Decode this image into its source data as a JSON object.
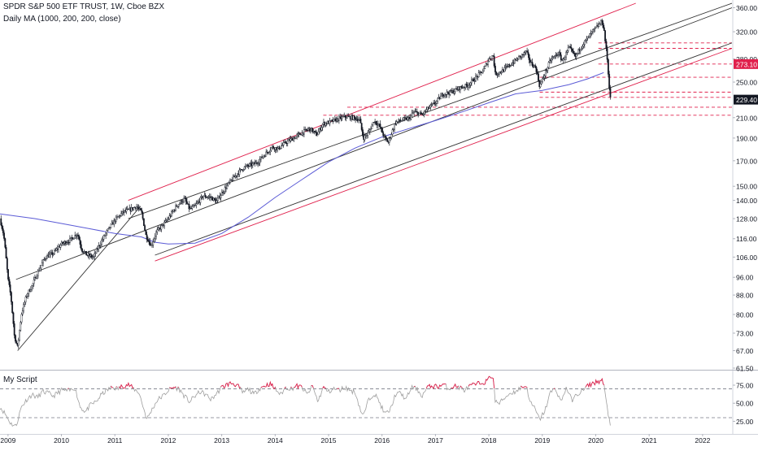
{
  "header": {
    "title": "SPDR S&P 500 ETF TRUST, 1W, Cboe BZX",
    "indicator": "Daily MA (1000, 200, 200, close)",
    "pane_title": "My Script"
  },
  "colors": {
    "candle": "#131722",
    "ma": "#5b5bd6",
    "channel_red": "#e0204c",
    "channel_black": "#333333",
    "dashed_red": "#e0204c",
    "oscillator": "#9e9e9e",
    "oscillator_overbought": "#e0204c",
    "price_badge": "#e0204c",
    "current_badge": "#131722"
  },
  "chart_data": [
    {
      "type": "candlestick",
      "title": "SPDR S&P 500 ETF TRUST, 1W, Cboe BZX",
      "y_scale": "log",
      "ylim": [
        61.5,
        368
      ],
      "xlim": [
        2008.85,
        2022.55
      ],
      "y_ticks": [
        "360.00",
        "320.00",
        "280.00",
        "250.00",
        "210.00",
        "190.00",
        "170.00",
        "150.00",
        "140.00",
        "128.00",
        "116.00",
        "106.00",
        "96.00",
        "88.00",
        "80.00",
        "73.00",
        "67.00",
        "61.50"
      ],
      "y_tick_values": [
        360,
        320,
        280,
        250,
        210,
        190,
        170,
        150,
        140,
        128,
        116,
        106,
        96,
        88,
        80,
        73,
        67,
        61.5
      ],
      "x_ticks": [
        "2009",
        "2010",
        "2011",
        "2012",
        "2013",
        "2014",
        "2015",
        "2016",
        "2017",
        "2018",
        "2019",
        "2020",
        "2021",
        "2022"
      ],
      "x_tick_values": [
        2009,
        2010,
        2011,
        2012,
        2013,
        2014,
        2015,
        2016,
        2017,
        2018,
        2019,
        2020,
        2021,
        2022
      ],
      "price_labels": [
        {
          "text": "273.10",
          "value": 273.1,
          "style": "red"
        },
        {
          "text": "229.40",
          "value": 229.4,
          "style": "dark"
        }
      ],
      "close_path": [
        [
          2008.85,
          128
        ],
        [
          2008.92,
          118
        ],
        [
          2009.0,
          95
        ],
        [
          2009.05,
          88
        ],
        [
          2009.12,
          72
        ],
        [
          2009.18,
          68
        ],
        [
          2009.25,
          80
        ],
        [
          2009.35,
          88
        ],
        [
          2009.45,
          92
        ],
        [
          2009.55,
          98
        ],
        [
          2009.7,
          106
        ],
        [
          2009.85,
          108
        ],
        [
          2010.0,
          113
        ],
        [
          2010.15,
          115
        ],
        [
          2010.3,
          119
        ],
        [
          2010.38,
          110
        ],
        [
          2010.48,
          107
        ],
        [
          2010.6,
          106
        ],
        [
          2010.72,
          113
        ],
        [
          2010.85,
          120
        ],
        [
          2011.0,
          127
        ],
        [
          2011.15,
          132
        ],
        [
          2011.3,
          134
        ],
        [
          2011.4,
          136
        ],
        [
          2011.5,
          132
        ],
        [
          2011.58,
          118
        ],
        [
          2011.68,
          112
        ],
        [
          2011.78,
          120
        ],
        [
          2011.9,
          124
        ],
        [
          2012.0,
          128
        ],
        [
          2012.15,
          136
        ],
        [
          2012.3,
          141
        ],
        [
          2012.4,
          134
        ],
        [
          2012.5,
          136
        ],
        [
          2012.65,
          143
        ],
        [
          2012.8,
          142
        ],
        [
          2012.9,
          139
        ],
        [
          2013.0,
          145
        ],
        [
          2013.15,
          153
        ],
        [
          2013.3,
          160
        ],
        [
          2013.4,
          164
        ],
        [
          2013.5,
          166
        ],
        [
          2013.65,
          168
        ],
        [
          2013.8,
          175
        ],
        [
          2013.95,
          182
        ],
        [
          2014.05,
          180
        ],
        [
          2014.2,
          186
        ],
        [
          2014.35,
          190
        ],
        [
          2014.5,
          195
        ],
        [
          2014.65,
          199
        ],
        [
          2014.78,
          193
        ],
        [
          2014.9,
          204
        ],
        [
          2015.0,
          205
        ],
        [
          2015.15,
          208
        ],
        [
          2015.3,
          211
        ],
        [
          2015.45,
          210
        ],
        [
          2015.58,
          208
        ],
        [
          2015.65,
          190
        ],
        [
          2015.75,
          195
        ],
        [
          2015.85,
          207
        ],
        [
          2015.95,
          202
        ],
        [
          2016.05,
          190
        ],
        [
          2016.12,
          186
        ],
        [
          2016.25,
          205
        ],
        [
          2016.4,
          208
        ],
        [
          2016.5,
          209
        ],
        [
          2016.6,
          216
        ],
        [
          2016.75,
          213
        ],
        [
          2016.85,
          219
        ],
        [
          2017.0,
          226
        ],
        [
          2017.15,
          236
        ],
        [
          2017.3,
          238
        ],
        [
          2017.45,
          243
        ],
        [
          2017.6,
          246
        ],
        [
          2017.75,
          255
        ],
        [
          2017.9,
          265
        ],
        [
          2018.0,
          280
        ],
        [
          2018.08,
          285
        ],
        [
          2018.12,
          260
        ],
        [
          2018.25,
          264
        ],
        [
          2018.4,
          272
        ],
        [
          2018.55,
          281
        ],
        [
          2018.7,
          290
        ],
        [
          2018.78,
          275
        ],
        [
          2018.88,
          268
        ],
        [
          2018.95,
          245
        ],
        [
          2019.0,
          252
        ],
        [
          2019.15,
          278
        ],
        [
          2019.3,
          288
        ],
        [
          2019.38,
          277
        ],
        [
          2019.5,
          296
        ],
        [
          2019.62,
          283
        ],
        [
          2019.72,
          297
        ],
        [
          2019.85,
          310
        ],
        [
          2019.95,
          321
        ],
        [
          2020.05,
          330
        ],
        [
          2020.12,
          337
        ],
        [
          2020.16,
          320
        ],
        [
          2020.19,
          296
        ],
        [
          2020.21,
          285
        ],
        [
          2020.24,
          255
        ],
        [
          2020.26,
          240
        ],
        [
          2020.28,
          229.4
        ]
      ],
      "moving_average": {
        "name": "Daily MA (1000, 200, 200, close)",
        "points": [
          [
            2008.85,
            131
          ],
          [
            2009.5,
            128
          ],
          [
            2010.0,
            125
          ],
          [
            2010.5,
            122
          ],
          [
            2011.0,
            119
          ],
          [
            2011.5,
            117
          ],
          [
            2011.75,
            114
          ],
          [
            2012.0,
            113
          ],
          [
            2012.5,
            113.5
          ],
          [
            2013.0,
            119
          ],
          [
            2013.5,
            129
          ],
          [
            2014.0,
            142
          ],
          [
            2014.5,
            155
          ],
          [
            2015.0,
            169
          ],
          [
            2015.5,
            181
          ],
          [
            2016.0,
            191
          ],
          [
            2016.5,
            199
          ],
          [
            2017.0,
            207
          ],
          [
            2017.5,
            216
          ],
          [
            2018.0,
            226
          ],
          [
            2018.5,
            236
          ],
          [
            2019.0,
            240
          ],
          [
            2019.5,
            247
          ],
          [
            2019.85,
            254
          ],
          [
            2020.0,
            258
          ],
          [
            2020.15,
            262
          ]
        ]
      },
      "trend_lines": [
        {
          "color": "red",
          "points": [
            [
              2011.25,
              140
            ],
            [
              2020.75,
              368
            ]
          ]
        },
        {
          "color": "red",
          "points": [
            [
              2011.75,
              104
            ],
            [
              2022.55,
              295
            ]
          ]
        },
        {
          "color": "black",
          "points": [
            [
              2009.15,
              95
            ],
            [
              2022.55,
              360
            ]
          ]
        },
        {
          "color": "black",
          "points": [
            [
              2011.75,
              107
            ],
            [
              2022.55,
              303
            ]
          ]
        },
        {
          "color": "black",
          "points": [
            [
              2011.25,
              128
            ],
            [
              2022.55,
              368
            ]
          ]
        },
        {
          "color": "black",
          "points": [
            [
              2009.18,
              67
            ],
            [
              2011.48,
              136
            ]
          ]
        }
      ],
      "dashed_levels": [
        {
          "value": 303,
          "from": 2020.05
        },
        {
          "value": 295,
          "from": 2020.05
        },
        {
          "value": 273.1,
          "from": 2020.05
        },
        {
          "value": 256,
          "from": 2018.95
        },
        {
          "value": 238,
          "from": 2018.95
        },
        {
          "value": 232,
          "from": 2018.95
        },
        {
          "value": 221,
          "from": 2015.35
        },
        {
          "value": 212.5,
          "from": 2014.9
        }
      ]
    },
    {
      "type": "line",
      "title": "My Script",
      "ylim": [
        12,
        93
      ],
      "y_ticks": [
        "75.00",
        "50.00",
        "25.00"
      ],
      "y_tick_values": [
        75,
        50,
        25
      ],
      "levels": [
        70,
        30
      ],
      "series": [
        {
          "points": [
            [
              2008.85,
              45
            ],
            [
              2008.95,
              35
            ],
            [
              2009.05,
              22
            ],
            [
              2009.15,
              18
            ],
            [
              2009.25,
              45
            ],
            [
              2009.35,
              55
            ],
            [
              2009.45,
              62
            ],
            [
              2009.55,
              58
            ],
            [
              2009.65,
              66
            ],
            [
              2009.75,
              64
            ],
            [
              2009.85,
              60
            ],
            [
              2010.0,
              68
            ],
            [
              2010.15,
              67
            ],
            [
              2010.25,
              72
            ],
            [
              2010.35,
              45
            ],
            [
              2010.45,
              38
            ],
            [
              2010.55,
              48
            ],
            [
              2010.65,
              52
            ],
            [
              2010.75,
              62
            ],
            [
              2010.85,
              68
            ],
            [
              2010.95,
              72
            ],
            [
              2011.05,
              70
            ],
            [
              2011.15,
              74
            ],
            [
              2011.25,
              76
            ],
            [
              2011.35,
              70
            ],
            [
              2011.45,
              65
            ],
            [
              2011.55,
              40
            ],
            [
              2011.6,
              28
            ],
            [
              2011.7,
              42
            ],
            [
              2011.8,
              55
            ],
            [
              2011.9,
              60
            ],
            [
              2012.0,
              68
            ],
            [
              2012.1,
              72
            ],
            [
              2012.2,
              70
            ],
            [
              2012.3,
              60
            ],
            [
              2012.4,
              52
            ],
            [
              2012.5,
              60
            ],
            [
              2012.6,
              66
            ],
            [
              2012.7,
              62
            ],
            [
              2012.8,
              55
            ],
            [
              2012.9,
              63
            ],
            [
              2013.0,
              72
            ],
            [
              2013.1,
              76
            ],
            [
              2013.2,
              78
            ],
            [
              2013.3,
              74
            ],
            [
              2013.4,
              64
            ],
            [
              2013.5,
              70
            ],
            [
              2013.6,
              62
            ],
            [
              2013.7,
              70
            ],
            [
              2013.8,
              74
            ],
            [
              2013.9,
              77
            ],
            [
              2014.0,
              70
            ],
            [
              2014.1,
              62
            ],
            [
              2014.2,
              72
            ],
            [
              2014.3,
              70
            ],
            [
              2014.4,
              74
            ],
            [
              2014.5,
              72
            ],
            [
              2014.6,
              62
            ],
            [
              2014.7,
              74
            ],
            [
              2014.8,
              52
            ],
            [
              2014.9,
              72
            ],
            [
              2015.0,
              66
            ],
            [
              2015.1,
              70
            ],
            [
              2015.2,
              68
            ],
            [
              2015.3,
              72
            ],
            [
              2015.4,
              68
            ],
            [
              2015.5,
              65
            ],
            [
              2015.6,
              40
            ],
            [
              2015.65,
              32
            ],
            [
              2015.75,
              55
            ],
            [
              2015.85,
              64
            ],
            [
              2015.95,
              52
            ],
            [
              2016.05,
              35
            ],
            [
              2016.15,
              40
            ],
            [
              2016.25,
              62
            ],
            [
              2016.35,
              64
            ],
            [
              2016.45,
              55
            ],
            [
              2016.55,
              72
            ],
            [
              2016.65,
              70
            ],
            [
              2016.75,
              60
            ],
            [
              2016.85,
              72
            ],
            [
              2016.95,
              74
            ],
            [
              2017.05,
              73
            ],
            [
              2017.15,
              76
            ],
            [
              2017.25,
              70
            ],
            [
              2017.35,
              74
            ],
            [
              2017.45,
              72
            ],
            [
              2017.55,
              68
            ],
            [
              2017.65,
              74
            ],
            [
              2017.75,
              76
            ],
            [
              2017.85,
              78
            ],
            [
              2017.95,
              80
            ],
            [
              2018.0,
              84
            ],
            [
              2018.05,
              88
            ],
            [
              2018.08,
              86
            ],
            [
              2018.12,
              52
            ],
            [
              2018.2,
              50
            ],
            [
              2018.3,
              58
            ],
            [
              2018.4,
              64
            ],
            [
              2018.5,
              66
            ],
            [
              2018.6,
              72
            ],
            [
              2018.7,
              74
            ],
            [
              2018.78,
              50
            ],
            [
              2018.85,
              44
            ],
            [
              2018.95,
              27
            ],
            [
              2019.05,
              40
            ],
            [
              2019.15,
              65
            ],
            [
              2019.25,
              70
            ],
            [
              2019.35,
              52
            ],
            [
              2019.45,
              72
            ],
            [
              2019.55,
              54
            ],
            [
              2019.65,
              62
            ],
            [
              2019.75,
              67
            ],
            [
              2019.85,
              74
            ],
            [
              2019.95,
              78
            ],
            [
              2020.05,
              80
            ],
            [
              2020.12,
              82
            ],
            [
              2020.16,
              72
            ],
            [
              2020.2,
              50
            ],
            [
              2020.24,
              32
            ],
            [
              2020.28,
              20
            ]
          ]
        }
      ]
    }
  ]
}
